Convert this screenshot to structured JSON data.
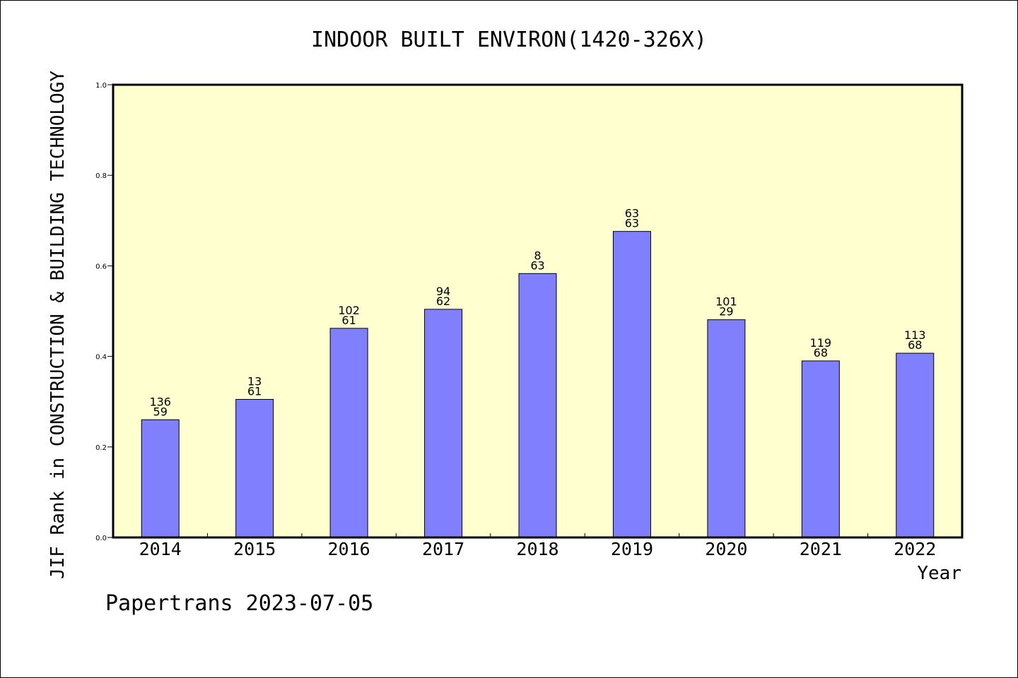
{
  "chart_data": {
    "type": "bar",
    "title": "INDOOR BUILT ENVIRON(1420-326X)",
    "xlabel": "Year",
    "ylabel": "JIF Rank in CONSTRUCTION & BUILDING TECHNOLOGY",
    "ylim": [
      0.0,
      1.0
    ],
    "yticks": [
      "0.0",
      "0.2",
      "0.4",
      "0.6",
      "0.8",
      "1.0"
    ],
    "categories": [
      "2014",
      "2015",
      "2016",
      "2017",
      "2018",
      "2019",
      "2020",
      "2021",
      "2022"
    ],
    "values": [
      0.26,
      0.305,
      0.462,
      0.504,
      0.583,
      0.676,
      0.481,
      0.39,
      0.407
    ],
    "bar_labels_top": [
      "136",
      "13",
      "102",
      "94",
      "8",
      "63",
      "101",
      "119",
      "113"
    ],
    "bar_labels_bottom": [
      "59",
      "61",
      "61",
      "62",
      "63",
      "63",
      "29",
      "68",
      "68"
    ],
    "grid": false,
    "colors": {
      "bar": "#8080ff",
      "plot_background": "#ffffd0"
    }
  },
  "footer": {
    "credit": "Papertrans 2023-07-05"
  }
}
